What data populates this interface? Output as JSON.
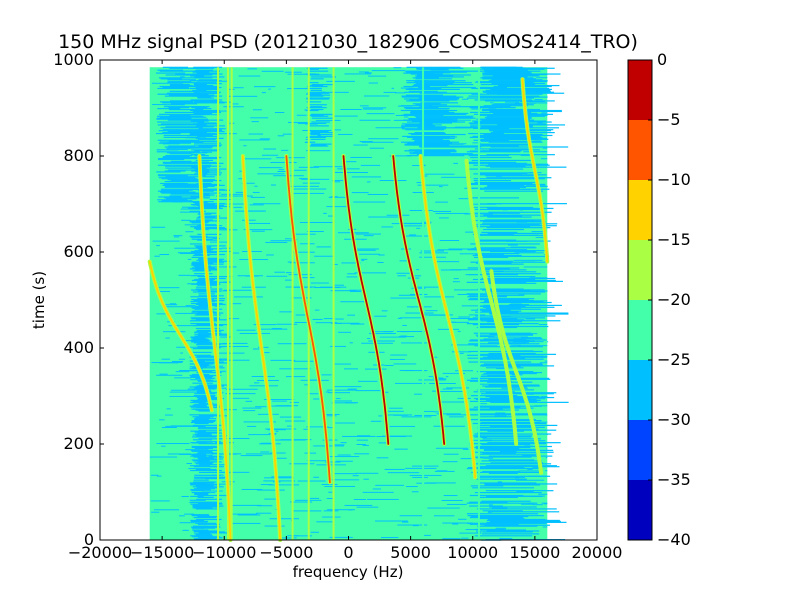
{
  "chart_data": {
    "type": "heatmap",
    "title": "150 MHz signal PSD (20121030_182906_COSMOS2414_TRO)",
    "xlabel": "frequency (Hz)",
    "ylabel": "time (s)",
    "xlim": [
      -20000,
      20000
    ],
    "ylim": [
      0,
      1000
    ],
    "x_ticks": [
      -20000,
      -15000,
      -10000,
      -5000,
      0,
      5000,
      10000,
      15000,
      20000
    ],
    "x_tick_labels": [
      "−20000",
      "−15000",
      "−10000",
      "−5000",
      "0",
      "5000",
      "10000",
      "15000",
      "20000"
    ],
    "y_ticks": [
      0,
      200,
      400,
      600,
      800,
      1000
    ],
    "y_tick_labels": [
      "0",
      "200",
      "400",
      "600",
      "800",
      "1000"
    ],
    "data_extent": {
      "x": [
        -16000,
        16000
      ],
      "y": [
        0,
        985
      ]
    },
    "background_level": -25,
    "noise_pattern": "horizontal streaks alternating -30 and -25 dB",
    "colorbar": {
      "levels": [
        -40,
        -35,
        -30,
        -25,
        -20,
        -15,
        -10,
        -5,
        0
      ],
      "tick_labels": [
        "−40",
        "−35",
        "−30",
        "−25",
        "−20",
        "−15",
        "−10",
        "−5",
        "0"
      ],
      "colors": [
        "#0000bf",
        "#0044ff",
        "#00bfff",
        "#44ffaa",
        "#aaff44",
        "#ffd200",
        "#ff5500",
        "#c00000"
      ]
    },
    "vertical_lines": [
      {
        "freq": -10500,
        "level": -20
      },
      {
        "freq": -9700,
        "level": -20
      },
      {
        "freq": -9400,
        "level": -20
      },
      {
        "freq": -4500,
        "level": -20
      },
      {
        "freq": -3200,
        "level": -20
      },
      {
        "freq": -1200,
        "level": -20
      },
      {
        "freq": 6000,
        "level": -25
      },
      {
        "freq": 10500,
        "level": -25
      }
    ],
    "traces": [
      {
        "f_top": -12000,
        "t_top": 800,
        "f_bottom": -9500,
        "t_bottom": 0,
        "peak": -15
      },
      {
        "f_top": -16000,
        "t_top": 580,
        "f_bottom": -11000,
        "t_bottom": 270,
        "peak": -15
      },
      {
        "f_top": -8500,
        "t_top": 800,
        "f_bottom": -5500,
        "t_bottom": 0,
        "peak": -15
      },
      {
        "f_top": -5000,
        "t_top": 800,
        "f_bottom": -1500,
        "t_bottom": 120,
        "peak": -10
      },
      {
        "f_top": -400,
        "t_top": 800,
        "f_bottom": 3200,
        "t_bottom": 200,
        "peak": -5
      },
      {
        "f_top": 3600,
        "t_top": 800,
        "f_bottom": 7700,
        "t_bottom": 200,
        "peak": -5
      },
      {
        "f_top": 5800,
        "t_top": 800,
        "f_bottom": 10200,
        "t_bottom": 130,
        "peak": -15
      },
      {
        "f_top": 9500,
        "t_top": 790,
        "f_bottom": 13500,
        "t_bottom": 200,
        "peak": -20
      },
      {
        "f_top": 11500,
        "t_top": 560,
        "f_bottom": 15500,
        "t_bottom": 140,
        "peak": -20
      },
      {
        "f_top": 14000,
        "t_top": 960,
        "f_bottom": 16000,
        "t_bottom": 580,
        "peak": -15
      }
    ]
  }
}
